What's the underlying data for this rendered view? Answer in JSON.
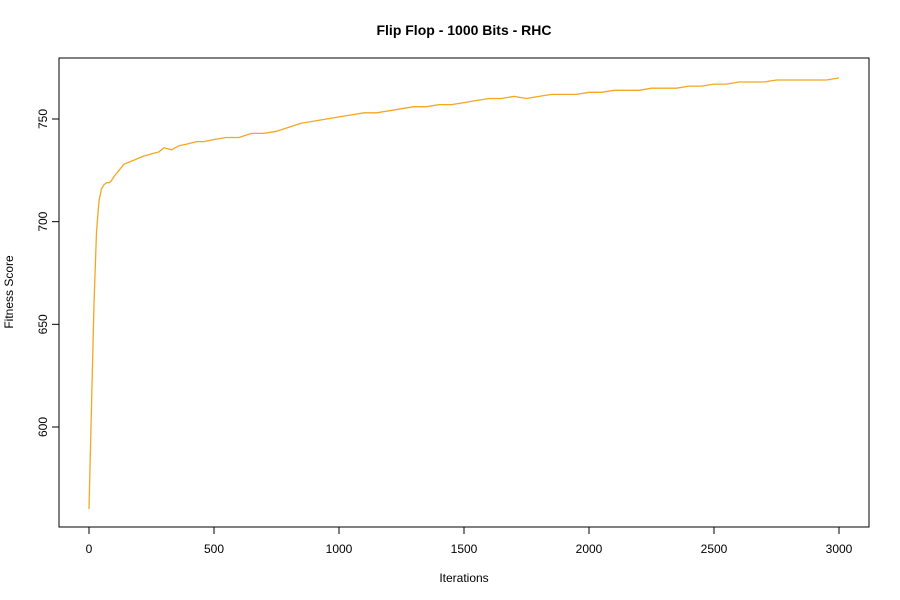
{
  "chart_data": {
    "type": "line",
    "title": "Flip Flop - 1000 Bits - RHC",
    "xlabel": "Iterations",
    "ylabel": "Fitness Score",
    "xlim": [
      0,
      3000
    ],
    "ylim": [
      560,
      770
    ],
    "x_ticks": [
      0,
      500,
      1000,
      1500,
      2000,
      2500,
      3000
    ],
    "y_ticks": [
      600,
      650,
      700,
      750
    ],
    "grid": false,
    "legend": "none",
    "series": [
      {
        "color": "#f5a623",
        "x": [
          0,
          10,
          20,
          30,
          40,
          50,
          60,
          70,
          80,
          90,
          100,
          120,
          140,
          160,
          180,
          200,
          220,
          250,
          280,
          300,
          330,
          360,
          400,
          430,
          460,
          500,
          550,
          600,
          650,
          700,
          750,
          800,
          850,
          900,
          950,
          1000,
          1050,
          1100,
          1150,
          1200,
          1250,
          1300,
          1350,
          1400,
          1450,
          1500,
          1550,
          1600,
          1650,
          1700,
          1750,
          1800,
          1850,
          1900,
          1950,
          2000,
          2050,
          2100,
          2150,
          2200,
          2250,
          2300,
          2350,
          2400,
          2450,
          2500,
          2550,
          2600,
          2650,
          2700,
          2750,
          2800,
          2850,
          2900,
          2950,
          3000
        ],
        "values": [
          560,
          610,
          660,
          695,
          710,
          716,
          718,
          719,
          719,
          720,
          722,
          725,
          728,
          729,
          730,
          731,
          732,
          733,
          734,
          736,
          735,
          737,
          738,
          739,
          739,
          740,
          741,
          741,
          743,
          743,
          744,
          746,
          748,
          749,
          750,
          751,
          752,
          753,
          753,
          754,
          755,
          756,
          756,
          757,
          757,
          758,
          759,
          760,
          760,
          761,
          760,
          761,
          762,
          762,
          762,
          763,
          763,
          764,
          764,
          764,
          765,
          765,
          765,
          766,
          766,
          767,
          767,
          768,
          768,
          768,
          769,
          769,
          769,
          769,
          769,
          770
        ]
      }
    ]
  }
}
